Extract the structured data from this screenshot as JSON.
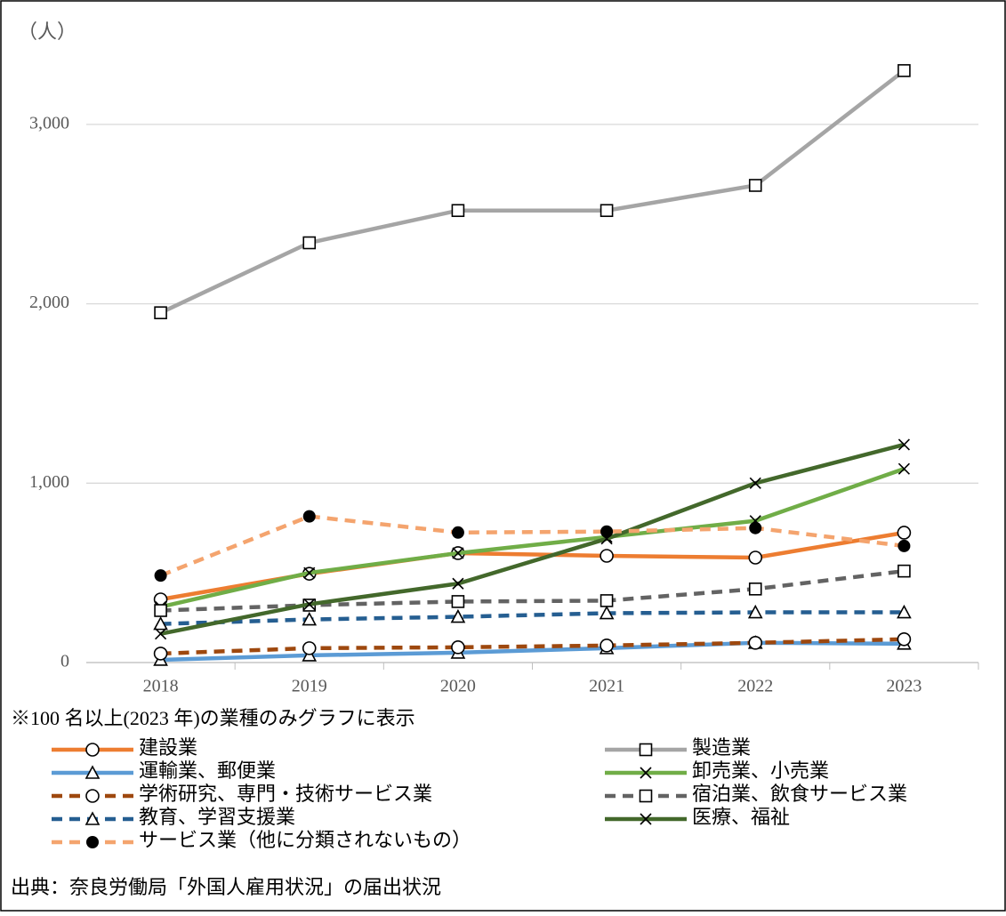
{
  "chart_data": {
    "type": "line",
    "y_label": "（人）",
    "note": "※100 名以上(2023 年)の業種のみグラフに表示",
    "source": "出典：奈良労働局「外国人雇用状況」の届出状況",
    "categories": [
      "2018",
      "2019",
      "2020",
      "2021",
      "2022",
      "2023"
    ],
    "ylim": [
      0,
      3500
    ],
    "yticks": [
      0,
      {
        "value": 1000,
        "label": "1,000"
      },
      {
        "value": 2000,
        "label": "2,000"
      },
      {
        "value": 3000,
        "label": "3,000"
      }
    ],
    "grid": true,
    "series": [
      {
        "name": "建設業",
        "color": "#ed7d31",
        "marker": "circle",
        "dashed": false,
        "values": [
          352,
          495,
          610,
          595,
          585,
          724
        ]
      },
      {
        "name": "製造業",
        "color": "#a5a5a5",
        "marker": "square",
        "dashed": false,
        "values": [
          1950,
          2340,
          2520,
          2520,
          2660,
          3300
        ]
      },
      {
        "name": "運輸業、郵便業",
        "color": "#5b9bd5",
        "marker": "triangle",
        "dashed": false,
        "values": [
          15,
          40,
          55,
          80,
          110,
          105
        ]
      },
      {
        "name": "卸売業、小売業",
        "color": "#70ad47",
        "marker": "x",
        "dashed": false,
        "values": [
          310,
          500,
          610,
          700,
          790,
          1080
        ]
      },
      {
        "name": "学術研究、専門・技術サービス業",
        "color": "#9e480e",
        "marker": "circle",
        "dashed": true,
        "values": [
          50,
          80,
          85,
          95,
          110,
          130
        ]
      },
      {
        "name": "宿泊業、飲食サービス業",
        "color": "#636363",
        "marker": "square",
        "dashed": true,
        "values": [
          290,
          320,
          340,
          345,
          410,
          510
        ]
      },
      {
        "name": "教育、学習支援業",
        "color": "#255e91",
        "marker": "triangle",
        "dashed": true,
        "values": [
          215,
          240,
          255,
          275,
          280,
          280
        ]
      },
      {
        "name": "医療、福祉",
        "color": "#43682b",
        "marker": "x",
        "dashed": false,
        "values": [
          160,
          325,
          440,
          690,
          1000,
          1215
        ]
      },
      {
        "name": "サービス業（他に分類されないもの）",
        "color": "#f4a46e",
        "marker": "dot",
        "dashed": true,
        "values": [
          485,
          815,
          725,
          730,
          750,
          650
        ]
      }
    ]
  }
}
